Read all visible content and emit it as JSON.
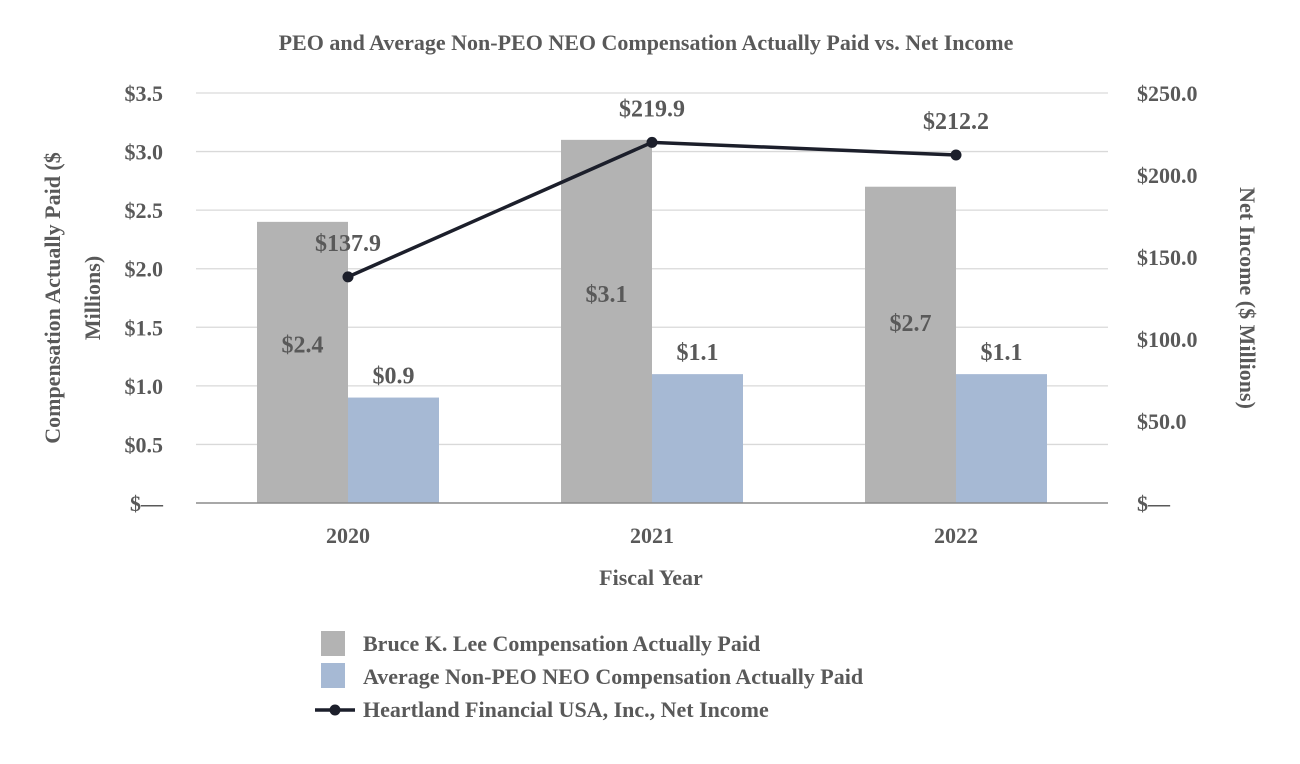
{
  "chart_data": {
    "type": "bar",
    "title": "PEO and Average Non-PEO NEO Compensation Actually Paid vs. Net Income",
    "xlabel": "Fiscal Year",
    "ylabel_line1": "Compensation Actually Paid ($",
    "ylabel_line2": "Millions)",
    "y2label": "Net Income ($ Millions)",
    "categories": [
      "2020",
      "2021",
      "2022"
    ],
    "ylim": [
      0,
      3.5
    ],
    "y2lim": [
      0,
      250
    ],
    "y_ticks": [
      {
        "value": 3.5,
        "label": "$3.5"
      },
      {
        "value": 3.0,
        "label": "$3.0"
      },
      {
        "value": 2.5,
        "label": "$2.5"
      },
      {
        "value": 2.0,
        "label": "$2.0"
      },
      {
        "value": 1.5,
        "label": "$1.5"
      },
      {
        "value": 1.0,
        "label": "$1.0"
      },
      {
        "value": 0.5,
        "label": "$0.5"
      },
      {
        "value": 0,
        "label": "$—"
      }
    ],
    "y2_ticks": [
      {
        "value": 250,
        "label": "$250.0"
      },
      {
        "value": 200,
        "label": "$200.0"
      },
      {
        "value": 150,
        "label": "$150.0"
      },
      {
        "value": 100,
        "label": "$100.0"
      },
      {
        "value": 50,
        "label": "$50.0"
      },
      {
        "value": 0,
        "label": "$—"
      }
    ],
    "series": [
      {
        "name": "Bruce K. Lee Compensation Actually Paid",
        "kind": "bar",
        "axis": "left",
        "color": "#b3b3b3",
        "values": [
          2.4,
          3.1,
          2.7
        ],
        "labels": [
          "$2.4",
          "$3.1",
          "$2.7"
        ]
      },
      {
        "name": "Average Non-PEO NEO Compensation Actually Paid",
        "kind": "bar",
        "axis": "left",
        "color": "#a6b9d4",
        "values": [
          0.9,
          1.1,
          1.1
        ],
        "labels": [
          "$0.9",
          "$1.1",
          "$1.1"
        ]
      },
      {
        "name": "Heartland Financial USA, Inc., Net Income",
        "kind": "line",
        "axis": "right",
        "color": "#1c1f2b",
        "values": [
          137.9,
          219.9,
          212.2
        ],
        "labels": [
          "$137.9",
          "$219.9",
          "$212.2"
        ]
      }
    ]
  }
}
